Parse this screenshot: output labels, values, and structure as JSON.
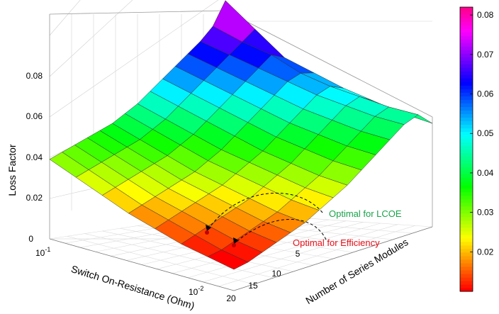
{
  "chart_data": {
    "type": "surface",
    "zlabel": "Loss Factor",
    "xlabel": "Switch On-Resistance (Ohm)",
    "ylabel": "Number of Series Modules",
    "z_ticks": [
      "0",
      "0.02",
      "0.04",
      "0.06",
      "0.08"
    ],
    "x_ticks": [
      {
        "base": "10",
        "exp": "-1"
      },
      {
        "base": "10",
        "exp": "-2"
      }
    ],
    "y_ticks": [
      "5",
      "10",
      "15",
      "20"
    ],
    "colorbar": {
      "ticks": [
        "0.02",
        "0.03",
        "0.04",
        "0.05",
        "0.06",
        "0.07",
        "0.08"
      ],
      "colormap": "hsv (red-yellow-green-cyan-blue-magenta-red)",
      "range": [
        0.01,
        0.082
      ]
    },
    "grid": true,
    "annotations": [
      {
        "text": "Optimal for LCOE",
        "color": "#19a34a"
      },
      {
        "text": "Optimal for Efficiency",
        "color": "#e8101a"
      }
    ],
    "surface_z": [
      [
        0.03,
        0.032,
        0.034,
        0.036,
        0.038,
        0.04,
        0.043,
        0.046,
        0.05,
        0.054,
        0.058,
        0.062,
        0.066,
        0.071,
        0.08
      ],
      [
        0.026,
        0.028,
        0.03,
        0.032,
        0.034,
        0.036,
        0.039,
        0.042,
        0.046,
        0.05,
        0.054,
        0.058,
        0.062,
        0.066,
        0.07
      ],
      [
        0.022,
        0.024,
        0.026,
        0.028,
        0.03,
        0.032,
        0.035,
        0.038,
        0.042,
        0.046,
        0.05,
        0.054,
        0.058,
        0.062,
        0.06
      ],
      [
        0.018,
        0.02,
        0.022,
        0.024,
        0.026,
        0.028,
        0.031,
        0.034,
        0.038,
        0.042,
        0.046,
        0.05,
        0.054,
        0.056,
        0.055
      ],
      [
        0.015,
        0.017,
        0.019,
        0.021,
        0.023,
        0.025,
        0.028,
        0.031,
        0.034,
        0.038,
        0.042,
        0.046,
        0.05,
        0.052,
        0.05
      ],
      [
        0.012,
        0.014,
        0.016,
        0.018,
        0.02,
        0.022,
        0.025,
        0.028,
        0.031,
        0.035,
        0.039,
        0.043,
        0.047,
        0.049,
        0.046
      ],
      [
        0.01,
        0.011,
        0.013,
        0.015,
        0.017,
        0.019,
        0.022,
        0.025,
        0.028,
        0.032,
        0.036,
        0.04,
        0.044,
        0.046,
        0.042
      ],
      [
        0.008,
        0.009,
        0.011,
        0.013,
        0.015,
        0.017,
        0.02,
        0.023,
        0.026,
        0.03,
        0.034,
        0.038,
        0.042,
        0.044,
        0.039
      ]
    ]
  }
}
